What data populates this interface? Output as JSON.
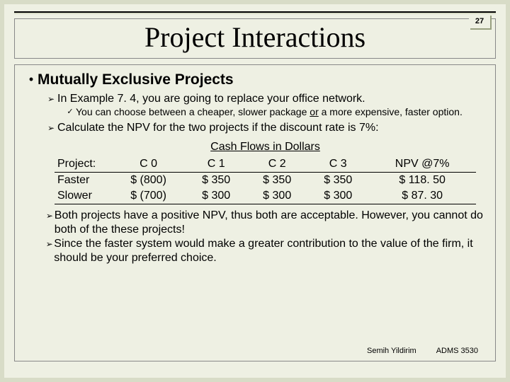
{
  "page_number": "27",
  "title": "Project Interactions",
  "heading": "Mutually Exclusive Projects",
  "bullets": {
    "b1": "In Example 7. 4, you are going to replace your office network.",
    "b1a_pre": "You can choose between a cheaper, slower package ",
    "b1a_u": "or",
    "b1a_post": " a more expensive, faster option.",
    "b2": "Calculate the NPV for the two projects if the discount rate is 7%:",
    "b3": "Both projects have a positive NPV, thus both are acceptable. However, you cannot do both of the these projects!",
    "b4": "Since the faster system would make a greater contribution to the value of the firm, it should be your preferred choice."
  },
  "table": {
    "title": "Cash Flows in Dollars",
    "headers": {
      "project": "Project:",
      "c0": "C 0",
      "c1": "C 1",
      "c2": "C 2",
      "c3": "C 3",
      "npv": "NPV @7%"
    },
    "rows": {
      "r0": {
        "name": "Faster",
        "c0": "$  (800)",
        "c1": "$  350",
        "c2": "$  350",
        "c3": "$  350",
        "npv": "$  118. 50"
      },
      "r1": {
        "name": "Slower",
        "c0": "$  (700)",
        "c1": "$  300",
        "c2": "$  300",
        "c3": "$  300",
        "npv": "$    87. 30"
      }
    }
  },
  "footer": {
    "author": "Semih Yildirim",
    "course": "ADMS 3530"
  },
  "colors": {
    "slide_bg": "#eef0e3",
    "outer_bg": "#d8dcc7"
  }
}
